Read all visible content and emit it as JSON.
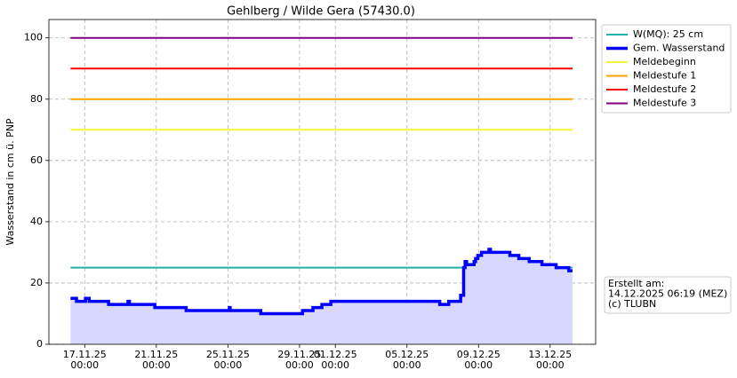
{
  "chart_data": {
    "type": "line",
    "title": "Gehlberg / Wilde Gera (57430.0)",
    "y_label": "Wasserstand in cm ü. PNP",
    "xlim": [
      "2025-11-15T00:00",
      "2025-12-15T13:00"
    ],
    "ylim": [
      0,
      106
    ],
    "yticks": [
      0,
      20,
      40,
      60,
      80,
      100
    ],
    "xticks": [
      {
        "value": "2025-11-17T00:00",
        "label": "17.11.25\n00:00"
      },
      {
        "value": "2025-11-21T00:00",
        "label": "21.11.25\n00:00"
      },
      {
        "value": "2025-11-25T00:00",
        "label": "25.11.25\n00:00"
      },
      {
        "value": "2025-11-29T00:00",
        "label": "29.11.25\n00:00"
      },
      {
        "value": "2025-12-01T00:00",
        "label": "01.12.25\n00:00"
      },
      {
        "value": "2025-12-05T00:00",
        "label": "05.12.25\n00:00"
      },
      {
        "value": "2025-12-09T00:00",
        "label": "09.12.25\n00:00"
      },
      {
        "value": "2025-12-13T00:00",
        "label": "13.12.25\n00:00"
      }
    ],
    "grid": true,
    "legend_position": "outside-upper-right",
    "series": [
      {
        "name": "W(MQ): 25 cm",
        "color": "#20b2aa",
        "width": 2,
        "x": [
          "2025-11-16T05:00",
          "2025-12-14T06:00"
        ],
        "values": [
          25,
          25
        ]
      },
      {
        "name": "Gem. Wasserstand",
        "color": "#0000ff",
        "width": 3.5,
        "fill": "#d8d8ff",
        "step": true,
        "x": [
          "2025-11-16T05:00",
          "2025-11-16T13:00",
          "2025-11-17T01:00",
          "2025-11-17T06:00",
          "2025-11-18T08:00",
          "2025-11-19T10:00",
          "2025-11-19T12:00",
          "2025-11-20T22:00",
          "2025-11-22T16:00",
          "2025-11-25T02:00",
          "2025-11-25T03:00",
          "2025-11-26T20:00",
          "2025-11-29T04:00",
          "2025-11-29T18:00",
          "2025-11-30T06:00",
          "2025-11-30T18:00",
          "2025-12-06T20:00",
          "2025-12-07T08:00",
          "2025-12-08T00:00",
          "2025-12-08T04:00",
          "2025-12-08T06:00",
          "2025-12-08T08:00",
          "2025-12-08T18:00",
          "2025-12-08T20:00",
          "2025-12-08T23:00",
          "2025-12-09T04:00",
          "2025-12-09T14:00",
          "2025-12-09T16:00",
          "2025-12-10T18:00",
          "2025-12-11T06:00",
          "2025-12-11T20:00",
          "2025-12-12T13:00",
          "2025-12-13T08:00",
          "2025-12-14T01:00",
          "2025-12-14T06:00"
        ],
        "values": [
          15,
          14,
          15,
          14,
          13,
          14,
          13,
          12,
          11,
          12,
          11,
          10,
          11,
          12,
          13,
          14,
          13,
          14,
          16,
          25,
          27,
          26,
          27,
          28,
          29,
          30,
          31,
          30,
          29,
          28,
          27,
          26,
          25,
          24,
          24
        ]
      },
      {
        "name": "Meldebeginn",
        "color": "#f5f53a",
        "width": 2,
        "x": [
          "2025-11-16T05:00",
          "2025-12-14T06:00"
        ],
        "values": [
          70,
          70
        ]
      },
      {
        "name": "Meldestufe 1",
        "color": "#ffa500",
        "width": 2,
        "x": [
          "2025-11-16T05:00",
          "2025-12-14T06:00"
        ],
        "values": [
          80,
          80
        ]
      },
      {
        "name": "Meldestufe 2",
        "color": "#ff0000",
        "width": 2,
        "x": [
          "2025-11-16T05:00",
          "2025-12-14T06:00"
        ],
        "values": [
          90,
          90
        ]
      },
      {
        "name": "Meldestufe 3",
        "color": "#800080",
        "width": 2,
        "x": [
          "2025-11-16T05:00",
          "2025-12-14T06:00"
        ],
        "values": [
          100,
          100
        ]
      }
    ],
    "annotation": [
      "Erstellt am:",
      "14.12.2025 06:19 (MEZ)",
      "(c) TLUBN"
    ]
  }
}
